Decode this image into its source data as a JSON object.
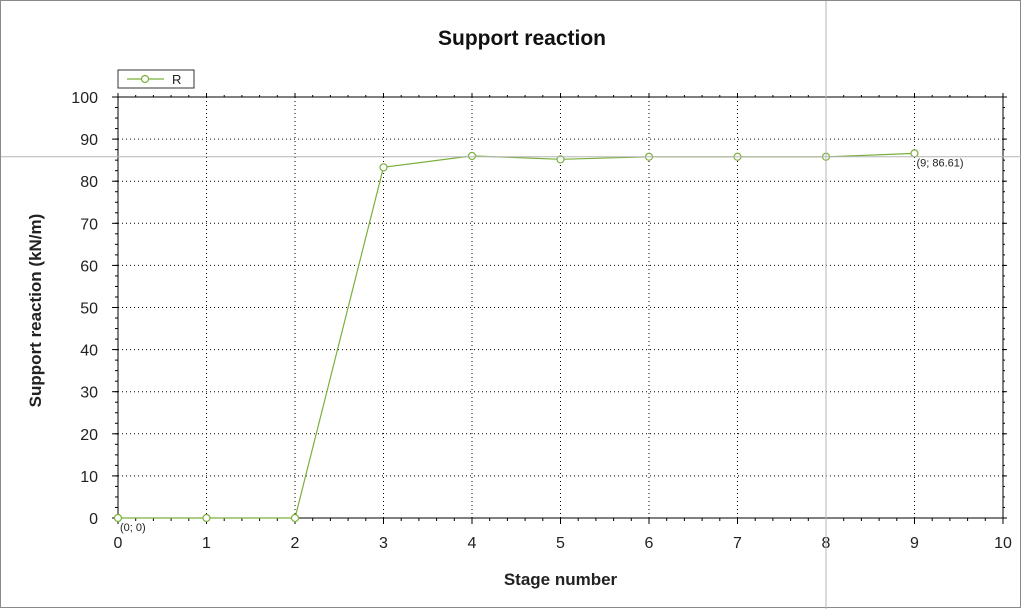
{
  "chart_data": {
    "type": "line",
    "title": "Support reaction",
    "xlabel": "Stage number",
    "ylabel": "Support reaction (kN/m)",
    "xlim": [
      0,
      10
    ],
    "ylim": [
      0,
      100
    ],
    "x_ticks": [
      "0",
      "1",
      "2",
      "3",
      "4",
      "5",
      "6",
      "7",
      "8",
      "9",
      "10"
    ],
    "y_ticks": [
      "0",
      "10",
      "20",
      "30",
      "40",
      "50",
      "60",
      "70",
      "80",
      "90",
      "100"
    ],
    "grid": true,
    "legend_position": "top-left",
    "series": [
      {
        "name": "R",
        "color": "#7bb03c",
        "x": [
          0,
          1,
          2,
          3,
          4,
          5,
          6,
          7,
          8,
          9
        ],
        "y": [
          0,
          0,
          0,
          83.3,
          86.0,
          85.2,
          85.8,
          85.8,
          85.8,
          86.61
        ]
      }
    ],
    "point_labels": [
      {
        "text": "(0; 0)",
        "x": 0,
        "y": 0
      },
      {
        "text": "(9; 86.61)",
        "x": 9,
        "y": 86.61
      }
    ],
    "crosshair": {
      "x": 8,
      "y": 85.8
    }
  }
}
